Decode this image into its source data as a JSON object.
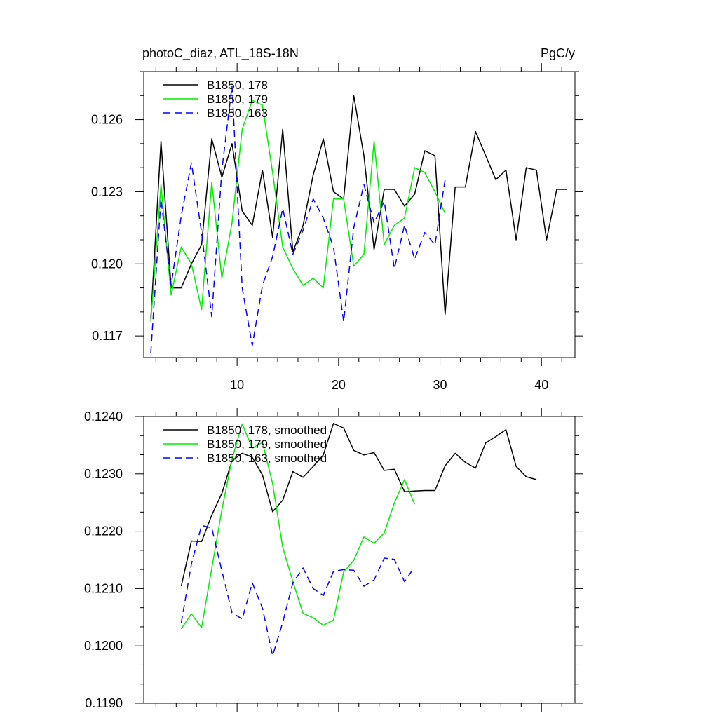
{
  "chart_data": [
    {
      "type": "line",
      "title": "photoC_diaz, ATL_18S-18N",
      "units": "PgC/y",
      "xlim": [
        0.8,
        43.3
      ],
      "ylim": [
        0.1161,
        0.128
      ],
      "xticks": [
        10,
        20,
        30,
        40
      ],
      "xtick_labels": [
        "10",
        "20",
        "30",
        "40"
      ],
      "yticks": [
        0.117,
        0.12,
        0.123,
        0.126
      ],
      "ytick_labels": [
        "0.117",
        "0.120",
        "0.123",
        "0.126"
      ],
      "legend_position": "top-left",
      "series": [
        {
          "name": "B1850, 178",
          "color": "#000000",
          "dash": "solid",
          "x": [
            1.5,
            2.5,
            3.5,
            4.5,
            5.5,
            6.5,
            7.5,
            8.5,
            9.5,
            10.5,
            11.5,
            12.5,
            13.5,
            14.5,
            15.5,
            16.5,
            17.5,
            18.5,
            19.5,
            20.5,
            21.5,
            22.5,
            23.5,
            24.5,
            25.5,
            26.5,
            27.5,
            28.5,
            29.5,
            30.5,
            31.5,
            32.5,
            33.5,
            34.5,
            35.5,
            36.5,
            37.5,
            38.5,
            39.5,
            40.5,
            41.5,
            42.5
          ],
          "y": [
            0.1177,
            0.1251,
            0.119,
            0.119,
            0.12,
            0.1208,
            0.1252,
            0.1236,
            0.125,
            0.1222,
            0.1216,
            0.1239,
            0.1211,
            0.1256,
            0.1205,
            0.1216,
            0.1237,
            0.1252,
            0.123,
            0.1227,
            0.127,
            0.1245,
            0.1206,
            0.1231,
            0.1231,
            0.1224,
            0.1229,
            0.1247,
            0.1245,
            0.1179,
            0.1232,
            0.1232,
            0.1255,
            0.1245,
            0.1235,
            0.1239,
            0.121,
            0.124,
            0.1239,
            0.121,
            0.1231,
            0.1231
          ]
        },
        {
          "name": "B1850, 179",
          "color": "#00ee00",
          "dash": "solid",
          "x": [
            1.5,
            2.5,
            3.5,
            4.5,
            5.5,
            6.5,
            7.5,
            8.5,
            9.5,
            10.5,
            11.5,
            12.5,
            13.5,
            14.5,
            15.5,
            16.5,
            17.5,
            18.5,
            19.5,
            20.5,
            21.5,
            22.5,
            23.5,
            24.5,
            25.5,
            26.5,
            27.5,
            28.5,
            29.5,
            30.5
          ],
          "y": [
            0.1176,
            0.1233,
            0.1187,
            0.1207,
            0.12,
            0.1181,
            0.1234,
            0.1194,
            0.1217,
            0.1256,
            0.1268,
            0.1266,
            0.1238,
            0.1207,
            0.1198,
            0.1191,
            0.1194,
            0.119,
            0.1227,
            0.1227,
            0.1199,
            0.1204,
            0.1251,
            0.1208,
            0.1216,
            0.1219,
            0.124,
            0.1238,
            0.123,
            0.1221
          ]
        },
        {
          "name": "B1850, 163",
          "color": "#0000ff",
          "dash": "dashed",
          "x": [
            1.5,
            2.5,
            3.5,
            4.5,
            5.5,
            6.5,
            7.5,
            8.5,
            9.5,
            10.5,
            11.5,
            12.5,
            13.5,
            14.5,
            15.5,
            16.5,
            17.5,
            18.5,
            19.5,
            20.5,
            21.5,
            22.5,
            23.5,
            24.5,
            25.5,
            26.5,
            27.5,
            28.5,
            29.5,
            30.5
          ],
          "y": [
            0.1163,
            0.1227,
            0.1191,
            0.122,
            0.1242,
            0.1213,
            0.1178,
            0.1239,
            0.1274,
            0.119,
            0.1166,
            0.1191,
            0.1203,
            0.1223,
            0.1204,
            0.1214,
            0.1227,
            0.1219,
            0.1207,
            0.1176,
            0.1215,
            0.1233,
            0.1217,
            0.1226,
            0.1198,
            0.1216,
            0.1202,
            0.1213,
            0.1208,
            0.1235
          ]
        }
      ]
    },
    {
      "type": "line",
      "xlim": [
        0.8,
        43.3
      ],
      "ylim": [
        0.119,
        0.124
      ],
      "xticks": [
        10,
        20,
        30,
        40
      ],
      "yticks": [
        0.119,
        0.12,
        0.121,
        0.122,
        0.123,
        0.124
      ],
      "ytick_labels": [
        "0.1190",
        "0.1200",
        "0.1210",
        "0.1220",
        "0.1230",
        "0.1240"
      ],
      "legend_position": "top-left",
      "series": [
        {
          "name": "B1850, 178, smoothed",
          "color": "#000000",
          "dash": "solid",
          "x": [
            4.5,
            5.5,
            6.5,
            7.5,
            8.5,
            9.5,
            10.5,
            11.5,
            12.5,
            13.5,
            14.5,
            15.5,
            16.5,
            17.5,
            18.5,
            19.5,
            20.5,
            21.5,
            22.5,
            23.5,
            24.5,
            25.5,
            26.5,
            27.5,
            28.5,
            29.5,
            30.5,
            31.5,
            32.5,
            33.5,
            34.5,
            35.5,
            36.5,
            37.5,
            38.5,
            39.5
          ],
          "y": [
            0.12104,
            0.12183,
            0.12182,
            0.12228,
            0.12266,
            0.12323,
            0.12336,
            0.12329,
            0.12298,
            0.12234,
            0.12254,
            0.12304,
            0.12294,
            0.12313,
            0.12333,
            0.12388,
            0.1238,
            0.12341,
            0.12333,
            0.12337,
            0.12306,
            0.12308,
            0.12269,
            0.1227,
            0.12271,
            0.12271,
            0.12314,
            0.12336,
            0.1232,
            0.1231,
            0.12354,
            0.12365,
            0.12377,
            0.12313,
            0.12295,
            0.1229
          ]
        },
        {
          "name": "B1850, 179, smoothed",
          "color": "#00ee00",
          "dash": "solid",
          "x": [
            4.5,
            5.5,
            6.5,
            7.5,
            8.5,
            9.5,
            10.5,
            11.5,
            12.5,
            13.5,
            14.5,
            15.5,
            16.5,
            17.5,
            18.5,
            19.5,
            20.5,
            21.5,
            22.5,
            23.5,
            24.5,
            25.5,
            26.5,
            27.5
          ],
          "y": [
            0.1203,
            0.12056,
            0.12032,
            0.12135,
            0.12237,
            0.12326,
            0.12387,
            0.12345,
            0.12355,
            0.12283,
            0.12172,
            0.12112,
            0.12057,
            0.12049,
            0.12036,
            0.12045,
            0.12129,
            0.12149,
            0.1219,
            0.12179,
            0.12197,
            0.12249,
            0.1229,
            0.12247
          ]
        },
        {
          "name": "B1850, 163, smoothed",
          "color": "#0000ff",
          "dash": "dashed",
          "x": [
            4.5,
            5.5,
            6.5,
            7.5,
            8.5,
            9.5,
            10.5,
            11.5,
            12.5,
            13.5,
            14.5,
            15.5,
            16.5,
            17.5,
            18.5,
            19.5,
            20.5,
            21.5,
            22.5,
            23.5,
            24.5,
            25.5,
            26.5,
            27.5
          ],
          "y": [
            0.1204,
            0.12143,
            0.1221,
            0.12206,
            0.12131,
            0.12058,
            0.12047,
            0.1211,
            0.12066,
            0.11983,
            0.12041,
            0.1211,
            0.12136,
            0.121,
            0.12088,
            0.1213,
            0.12133,
            0.12132,
            0.12104,
            0.12115,
            0.12153,
            0.12151,
            0.12112,
            0.12138
          ]
        }
      ]
    }
  ]
}
